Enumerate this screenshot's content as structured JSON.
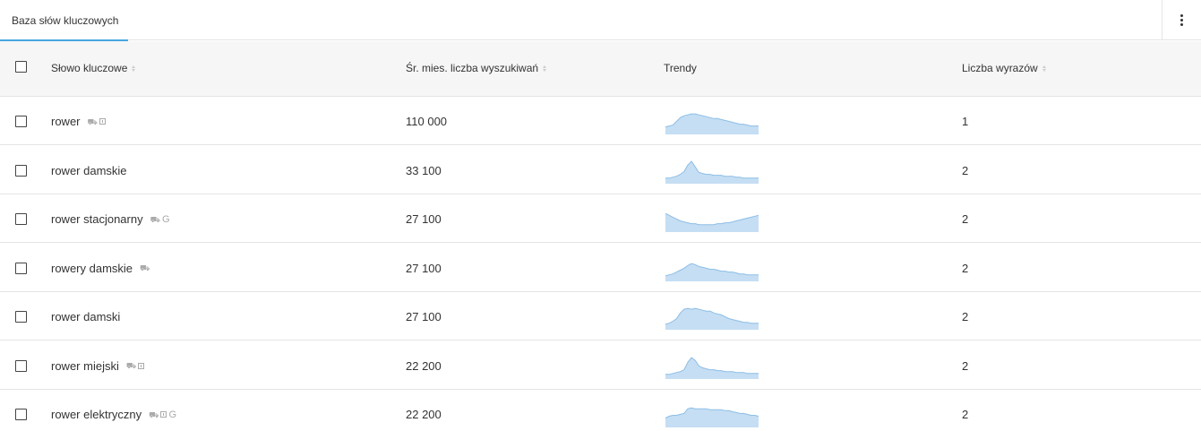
{
  "tabs": [
    {
      "label": "Baza słów kluczowych"
    }
  ],
  "table": {
    "columns": {
      "keyword": "Słowo kluczowe",
      "volume": "Śr. mies. liczba wyszukiwań",
      "trend": "Trendy",
      "word_count": "Liczba wyrazów"
    },
    "rows": [
      {
        "keyword": "rower",
        "features": [
          "gallery-icon",
          "image-icon"
        ],
        "volume": "110 000",
        "word_count": "1",
        "trend": [
          8,
          9,
          10,
          14,
          18,
          20,
          21,
          22,
          22,
          21,
          20,
          19,
          18,
          17,
          17,
          16,
          15,
          14,
          13,
          12,
          11,
          11,
          10,
          9,
          9,
          9
        ]
      },
      {
        "keyword": "rower damskie",
        "features": [],
        "volume": "33 100",
        "word_count": "2",
        "trend": [
          6,
          6,
          7,
          8,
          10,
          13,
          20,
          24,
          18,
          12,
          11,
          10,
          10,
          9,
          9,
          9,
          8,
          8,
          8,
          7,
          7,
          6,
          6,
          6,
          6,
          6
        ]
      },
      {
        "keyword": "rower stacjonarny",
        "features": [
          "gallery-icon",
          "google-icon"
        ],
        "volume": "27 100",
        "word_count": "2",
        "trend": [
          20,
          18,
          16,
          14,
          12,
          11,
          10,
          9,
          9,
          8,
          8,
          8,
          8,
          8,
          9,
          9,
          10,
          10,
          11,
          12,
          13,
          14,
          15,
          16,
          17,
          18
        ]
      },
      {
        "keyword": "rowery damskie",
        "features": [
          "gallery-icon"
        ],
        "volume": "27 100",
        "word_count": "2",
        "trend": [
          6,
          7,
          8,
          10,
          12,
          14,
          17,
          19,
          18,
          16,
          15,
          14,
          13,
          13,
          12,
          11,
          11,
          10,
          10,
          9,
          8,
          8,
          7,
          7,
          7,
          7
        ]
      },
      {
        "keyword": "rower damski",
        "features": [],
        "volume": "27 100",
        "word_count": "2",
        "trend": [
          6,
          7,
          9,
          12,
          18,
          22,
          23,
          22,
          23,
          22,
          21,
          20,
          20,
          18,
          17,
          16,
          14,
          12,
          11,
          10,
          9,
          8,
          8,
          7,
          7,
          7
        ]
      },
      {
        "keyword": "rower miejski",
        "features": [
          "gallery-icon",
          "image-icon"
        ],
        "volume": "22 200",
        "word_count": "2",
        "trend": [
          5,
          5,
          6,
          7,
          8,
          10,
          18,
          23,
          20,
          14,
          12,
          11,
          10,
          10,
          9,
          9,
          8,
          8,
          8,
          7,
          7,
          7,
          6,
          6,
          6,
          6
        ]
      },
      {
        "keyword": "rower elektryczny",
        "features": [
          "gallery-icon",
          "image-icon",
          "google-icon"
        ],
        "volume": "22 200",
        "word_count": "2",
        "trend": [
          10,
          12,
          13,
          13,
          14,
          15,
          20,
          21,
          20,
          20,
          20,
          20,
          19,
          19,
          19,
          19,
          18,
          18,
          17,
          16,
          15,
          15,
          14,
          13,
          13,
          12
        ]
      }
    ]
  },
  "colors": {
    "accent": "#46a6e0",
    "spark_fill": "#c5def3",
    "spark_stroke": "#8dbde6"
  }
}
